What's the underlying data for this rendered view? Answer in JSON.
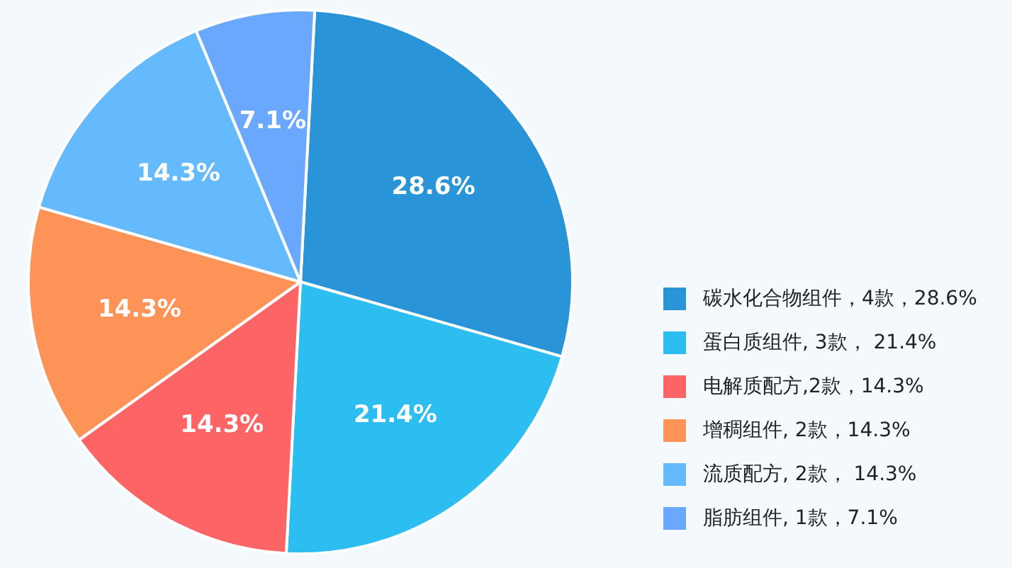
{
  "chart_data": {
    "type": "pie",
    "categories": [
      "碳水化合物组件，4款，28.6%",
      "蛋白质组件, 3款， 21.4%",
      "电解质配方,2款，14.3%",
      "增稠组件, 2款，14.3%",
      "流质配方, 2款， 14.3%",
      "脂肪组件, 1款，7.1%"
    ],
    "values": [
      28.6,
      21.4,
      14.3,
      14.3,
      14.3,
      7.1
    ],
    "colors": [
      "#2a94d8",
      "#2cbdf1",
      "#fd6465",
      "#fe9357",
      "#65b9fd",
      "#6aa8fd"
    ],
    "value_labels": [
      "28.6%",
      "21.4%",
      "14.3%",
      "14.3%",
      "14.3%",
      "7.1%"
    ],
    "legend": "right"
  }
}
